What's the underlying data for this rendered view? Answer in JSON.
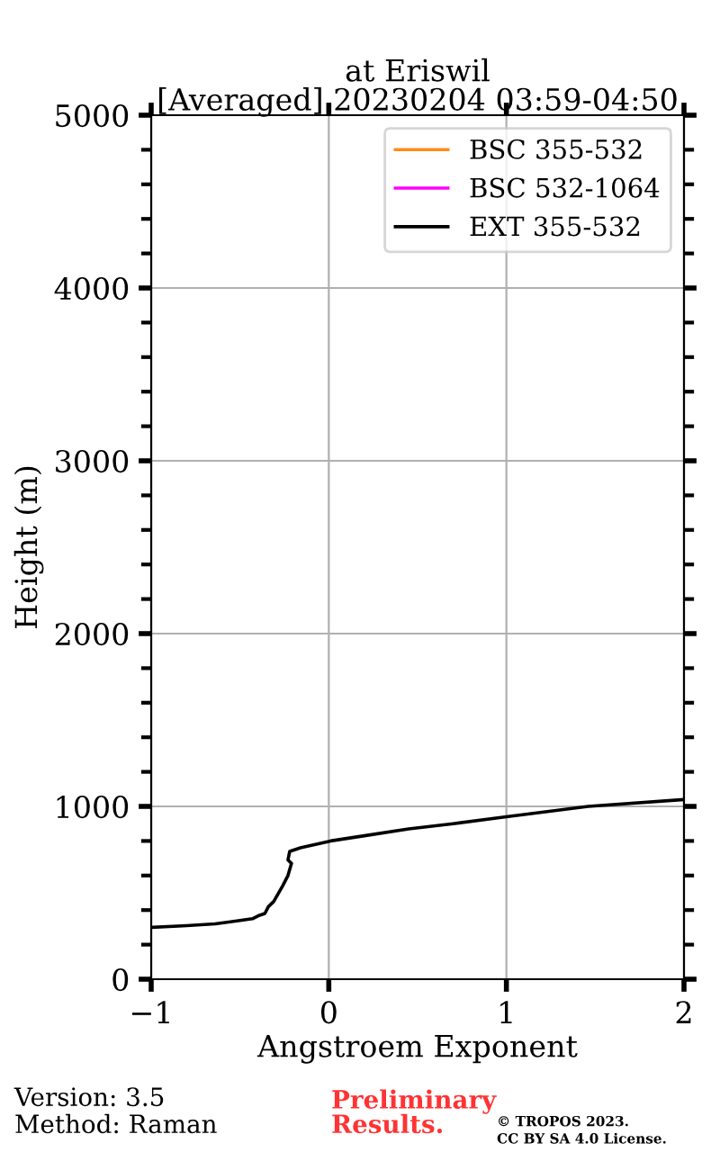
{
  "chart_data": {
    "type": "line",
    "title": "at Eriswil\n[Averaged] 20230204 03:59-04:50",
    "xlabel": "Angstroem Exponent",
    "ylabel": "Height (m)",
    "xlim": [
      -1,
      2
    ],
    "xticks": [
      -1,
      0,
      1,
      2
    ],
    "ylim": [
      0,
      5000
    ],
    "yticks": [
      0,
      1000,
      2000,
      3000,
      4000,
      5000
    ],
    "grid": true,
    "legend": "top right",
    "marker": "none",
    "line_style": "solid",
    "series": [
      {
        "name": "BSC 355-532",
        "color": "#ff8c1a"
      },
      {
        "name": "BSC 532-1064",
        "color": "#ff00ff"
      },
      {
        "name": "EXT 355-532",
        "color": "#000000",
        "x": [
          -0.99,
          -0.8,
          -0.64,
          -0.5,
          -0.43,
          -0.39,
          -0.36,
          -0.34,
          -0.31,
          -0.26,
          -0.23,
          -0.21,
          -0.23,
          -0.22,
          -0.16,
          0.01,
          0.2,
          0.45,
          0.7,
          1.0,
          1.46,
          2.0
        ],
        "values": [
          300,
          310,
          320,
          340,
          350,
          370,
          380,
          420,
          450,
          540,
          600,
          670,
          690,
          740,
          760,
          800,
          830,
          870,
          900,
          940,
          1000,
          1040
        ]
      }
    ],
    "annotations": [
      "Version: 3.5",
      "Method: Raman",
      "Preliminary\nResults.",
      "© TROPOS 2023.",
      "CC BY SA 4.0 License."
    ]
  }
}
